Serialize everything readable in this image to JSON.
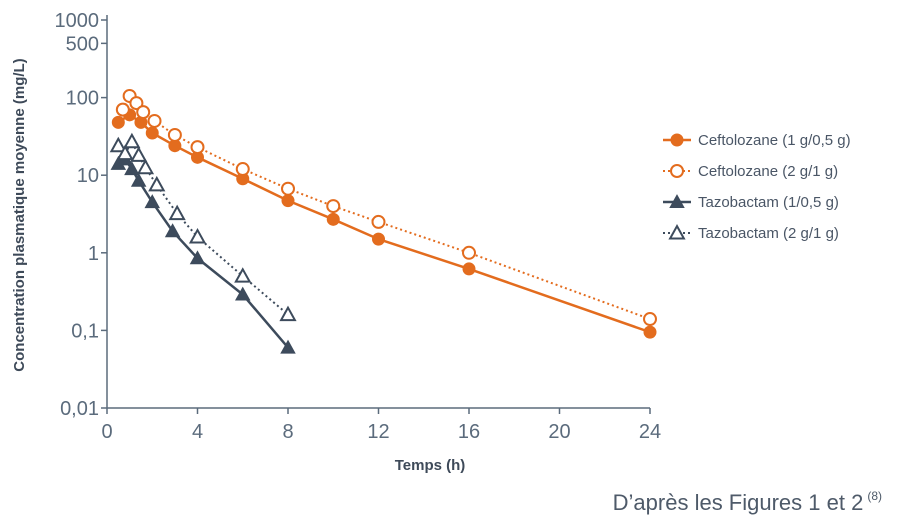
{
  "chart_data": {
    "type": "line",
    "xlabel": "Temps (h)",
    "ylabel": "Concentration plasmatique moyenne (mg/L)",
    "xscale": "linear",
    "yscale": "log",
    "xlim": [
      0,
      24
    ],
    "ylim": [
      0.01,
      1000
    ],
    "xticks": [
      0,
      4,
      8,
      12,
      16,
      20,
      24
    ],
    "xtick_labels": [
      "0",
      "4",
      "8",
      "12",
      "16",
      "20",
      "24"
    ],
    "yticks": [
      0.01,
      0.1,
      1,
      10,
      100,
      500,
      1000
    ],
    "ytick_labels": [
      "0,01",
      "0,1",
      "1",
      "10",
      "100",
      "500",
      "1000"
    ],
    "grid": false,
    "legend_position": "right",
    "series": [
      {
        "name": "Ceftolozane (1 g/0,5 g)",
        "color": "#e36c1e",
        "marker": "circle-filled",
        "line": "solid",
        "x": [
          0.5,
          1,
          1.5,
          2,
          3,
          4,
          6,
          8,
          10,
          12,
          16,
          24
        ],
        "y": [
          48,
          60,
          48,
          35,
          24,
          17,
          9,
          4.7,
          2.7,
          1.5,
          0.62,
          0.095
        ]
      },
      {
        "name": "Ceftolozane (2 g/1 g)",
        "color": "#e36c1e",
        "marker": "circle-open",
        "line": "dotted",
        "x": [
          0.7,
          1,
          1.3,
          1.6,
          2.1,
          3,
          4,
          6,
          8,
          10,
          12,
          16,
          24
        ],
        "y": [
          70,
          105,
          85,
          65,
          50,
          33,
          23,
          12,
          6.7,
          4,
          2.5,
          1,
          0.14
        ]
      },
      {
        "name": "Tazobactam (1/0,5 g)",
        "color": "#3d4b5c",
        "marker": "triangle-filled",
        "line": "solid",
        "x": [
          0.5,
          0.8,
          1.1,
          1.4,
          2,
          2.9,
          4,
          6,
          8
        ],
        "y": [
          14,
          16,
          12,
          8.5,
          4.5,
          1.9,
          0.85,
          0.29,
          0.06
        ]
      },
      {
        "name": "Tazobactam (2 g/1 g)",
        "color": "#3d4b5c",
        "marker": "triangle-open",
        "line": "dotted",
        "x": [
          0.5,
          0.8,
          1.1,
          1.4,
          1.7,
          2.2,
          3.1,
          4,
          6,
          8
        ],
        "y": [
          24,
          19,
          27,
          18,
          12.5,
          7.5,
          3.2,
          1.6,
          0.5,
          0.16
        ]
      }
    ]
  },
  "source": {
    "text": "D’après les Figures 1 et 2",
    "ref": "(8)"
  }
}
